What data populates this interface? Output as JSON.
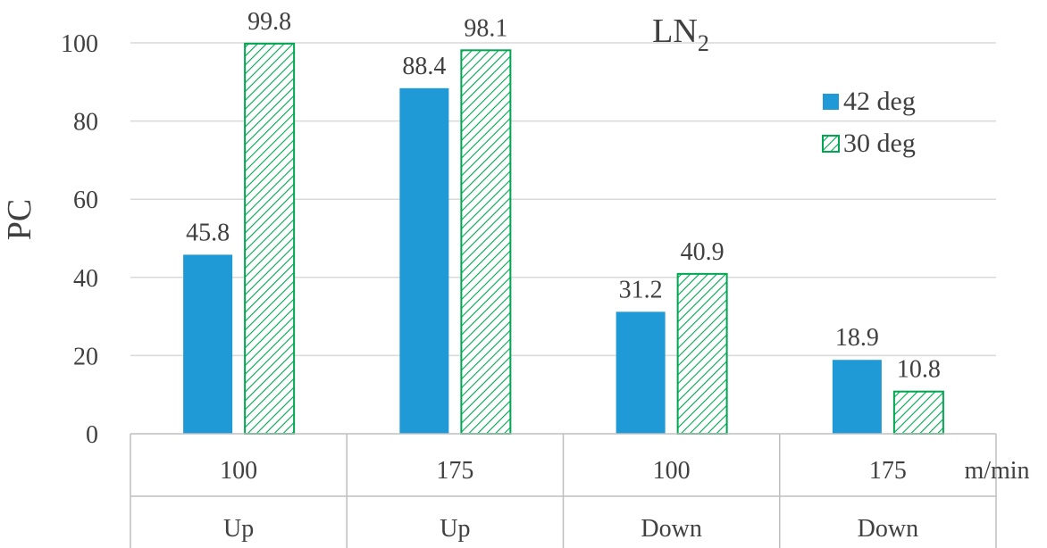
{
  "chart_data": {
    "type": "bar",
    "title": "LN",
    "title_subscript": "2",
    "ylabel": "PC",
    "x_unit_label": "m/min",
    "ylim": [
      0,
      100
    ],
    "y_ticks": [
      "0",
      "20",
      "40",
      "60",
      "80",
      "100"
    ],
    "categories": [
      {
        "speed": "100",
        "direction": "Up"
      },
      {
        "speed": "175",
        "direction": "Up"
      },
      {
        "speed": "100",
        "direction": "Down"
      },
      {
        "speed": "175",
        "direction": "Down"
      }
    ],
    "series": [
      {
        "name": "42 deg",
        "values": [
          45.8,
          88.4,
          31.2,
          18.9
        ],
        "value_labels": [
          "45.8",
          "88.4",
          "31.2",
          "18.9"
        ],
        "color": "#1f9ad6",
        "fill": "solid"
      },
      {
        "name": "30 deg",
        "values": [
          99.8,
          98.1,
          40.9,
          10.8
        ],
        "value_labels": [
          "99.8",
          "98.1",
          "40.9",
          "10.8"
        ],
        "color": "#00a651",
        "fill": "hatched"
      }
    ],
    "grid": true,
    "legend_position": "right"
  }
}
